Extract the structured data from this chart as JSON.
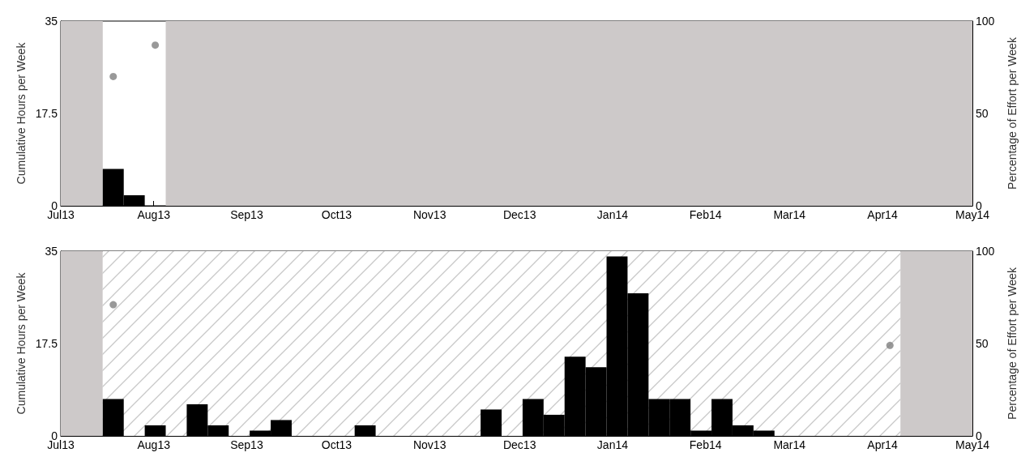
{
  "chart_data": [
    {
      "type": "bar",
      "ylabel": "Cumulative Hours per Week",
      "y2label": "Percentage of Effort per Week",
      "xlim": [
        "2013-07-01",
        "2014-05-01"
      ],
      "xticks": [
        {
          "value": "2013-07-01",
          "label": "Jul13"
        },
        {
          "value": "2013-08-01",
          "label": "Aug13"
        },
        {
          "value": "2013-09-01",
          "label": "Sep13"
        },
        {
          "value": "2013-10-01",
          "label": "Oct13"
        },
        {
          "value": "2013-11-01",
          "label": "Nov13"
        },
        {
          "value": "2013-12-01",
          "label": "Dec13"
        },
        {
          "value": "2014-01-01",
          "label": "Jan14"
        },
        {
          "value": "2014-02-01",
          "label": "Feb14"
        },
        {
          "value": "2014-03-01",
          "label": "Mar14"
        },
        {
          "value": "2014-04-01",
          "label": "Apr14"
        },
        {
          "value": "2014-05-01",
          "label": "May14"
        }
      ],
      "ylim": [
        0,
        35
      ],
      "yticks": [
        0,
        17.5,
        35
      ],
      "y2lim": [
        0,
        100
      ],
      "y2ticks": [
        0,
        50,
        100
      ],
      "grid": false,
      "marker": "circle",
      "bands": [
        {
          "axis": "x",
          "from": "2013-07-01",
          "to": "2013-07-15",
          "color": "#cdc9c9"
        },
        {
          "axis": "x",
          "from": "2013-08-05",
          "to": "2014-05-01",
          "color": "#cdc9c9"
        }
      ],
      "series": [
        {
          "color": "#000000",
          "x": [
            "2013-07-18T12:00",
            "2013-07-25T12:00"
          ],
          "values": [
            7,
            2
          ]
        },
        {
          "type": "scatter",
          "axis": "y2",
          "color": "#808080",
          "x": [
            "2013-07-18T12:00",
            "2013-08-01T12:00"
          ],
          "values": [
            70,
            87
          ]
        }
      ]
    },
    {
      "type": "bar",
      "ylabel": "Cumulative Hours per Week",
      "y2label": "Percentage of Effort per Week",
      "xlim": [
        "2013-07-01",
        "2014-05-01"
      ],
      "xticks": [
        {
          "value": "2013-07-01",
          "label": "Jul13"
        },
        {
          "value": "2013-08-01",
          "label": "Aug13"
        },
        {
          "value": "2013-09-01",
          "label": "Sep13"
        },
        {
          "value": "2013-10-01",
          "label": "Oct13"
        },
        {
          "value": "2013-11-01",
          "label": "Nov13"
        },
        {
          "value": "2013-12-01",
          "label": "Dec13"
        },
        {
          "value": "2014-01-01",
          "label": "Jan14"
        },
        {
          "value": "2014-02-01",
          "label": "Feb14"
        },
        {
          "value": "2014-03-01",
          "label": "Mar14"
        },
        {
          "value": "2014-04-01",
          "label": "Apr14"
        },
        {
          "value": "2014-05-01",
          "label": "May14"
        }
      ],
      "ylim": [
        0,
        35
      ],
      "yticks": [
        0,
        17.5,
        35
      ],
      "y2lim": [
        0,
        100
      ],
      "y2ticks": [
        0,
        50,
        100
      ],
      "grid": false,
      "marker": "circle",
      "bands": [
        {
          "axis": "x",
          "from": "2013-07-01",
          "to": "2013-07-15",
          "color": "#cdc9c9"
        },
        {
          "axis": "x",
          "from": "2013-07-15",
          "to": "2014-04-07"
        },
        {
          "axis": "x",
          "from": "2014-04-07",
          "to": "2014-05-01",
          "color": "#cdc9c9"
        }
      ],
      "series": [
        {
          "color": "#000000",
          "x": [
            "2013-07-18T12:00",
            "2013-08-01T12:00",
            "2013-08-15T12:00",
            "2013-08-22T12:00",
            "2013-09-05T12:00",
            "2013-09-12T12:00",
            "2013-10-10T12:00",
            "2013-11-21T12:00",
            "2013-12-05T12:00",
            "2013-12-12T12:00",
            "2013-12-19T12:00",
            "2013-12-26T12:00",
            "2014-01-02T12:00",
            "2014-01-09T12:00",
            "2014-01-16T12:00",
            "2014-01-23T12:00",
            "2014-01-30T12:00",
            "2014-02-06T12:00",
            "2014-02-13T12:00",
            "2014-02-20T12:00"
          ],
          "values": [
            7,
            2,
            6,
            2,
            1,
            3,
            2,
            5,
            7,
            4,
            15,
            13,
            34,
            27,
            7,
            7,
            1,
            7,
            2,
            1
          ]
        },
        {
          "type": "scatter",
          "axis": "y2",
          "color": "#808080",
          "x": [
            "2013-07-18T12:00",
            "2014-04-03T12:00"
          ],
          "values": [
            71,
            49
          ]
        }
      ]
    }
  ]
}
